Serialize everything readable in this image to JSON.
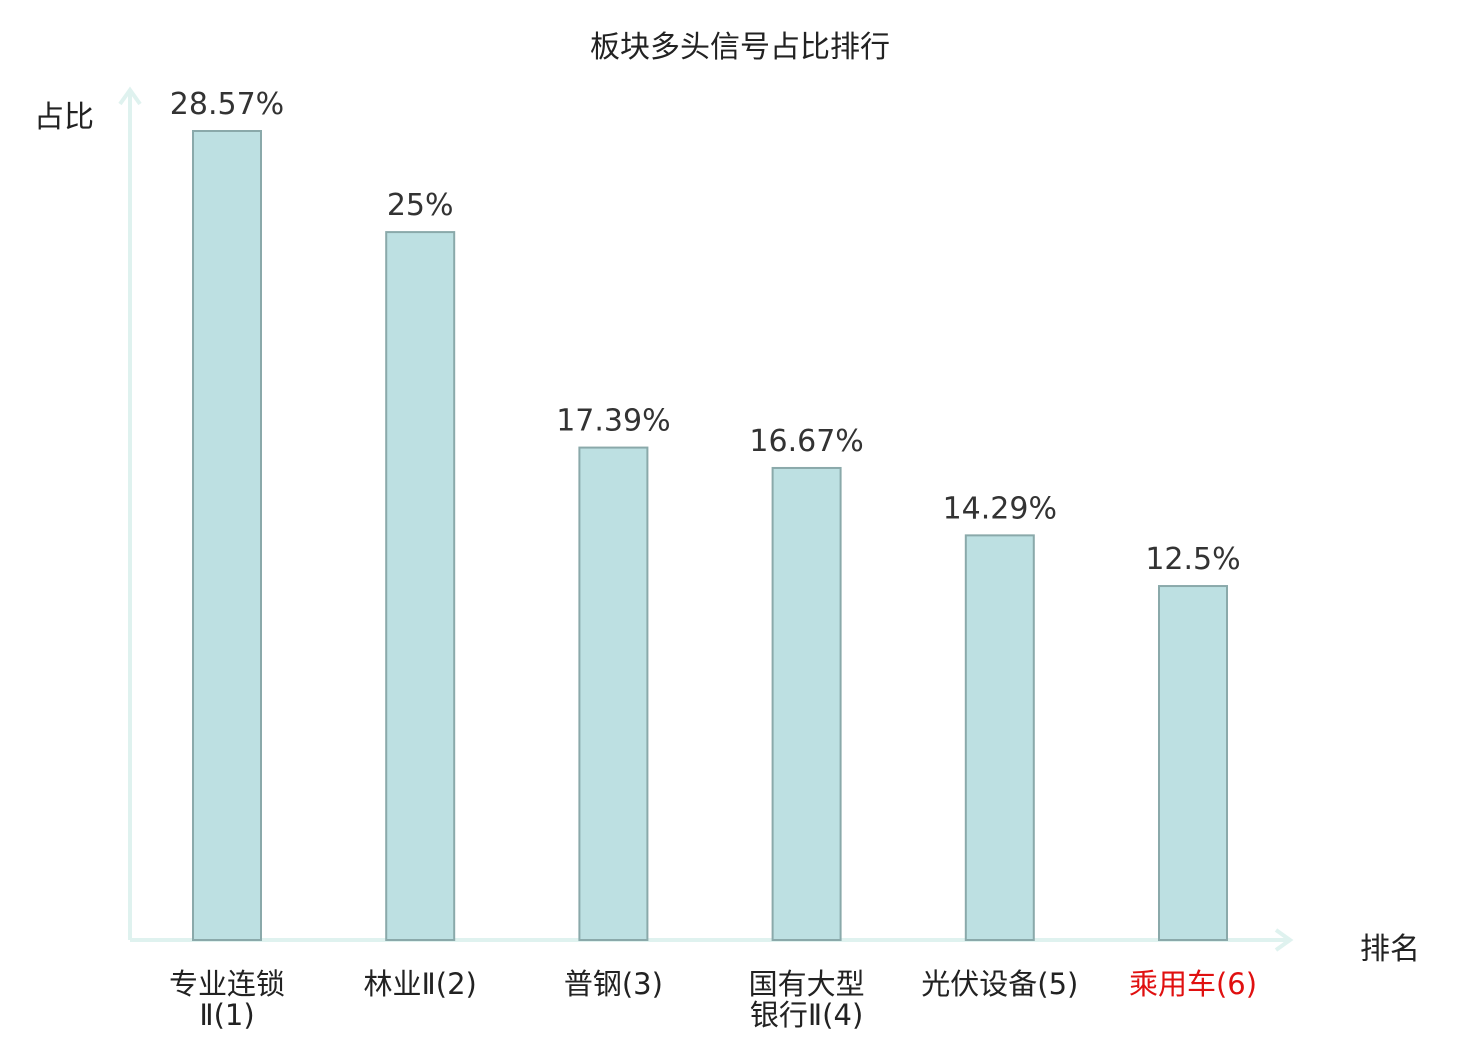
{
  "chart_data": {
    "type": "bar",
    "title": "板块多头信号占比排行",
    "xlabel": "排名",
    "ylabel": "占比",
    "unit": "%",
    "ylim": [
      0,
      28.57
    ],
    "grid": false,
    "legend": "none",
    "colors": {
      "bar_fill": "#bde0e2",
      "bar_stroke": "#8aa9aa",
      "axis": "#dff2ef",
      "value_label": "#333333",
      "category_label": "#222222",
      "highlight_label": "#e01010"
    },
    "categories": [
      {
        "lines": [
          "专业连锁",
          "Ⅱ(1)"
        ],
        "highlight": false
      },
      {
        "lines": [
          "林业Ⅱ(2)"
        ],
        "highlight": false
      },
      {
        "lines": [
          "普钢(3)"
        ],
        "highlight": false
      },
      {
        "lines": [
          "国有大型",
          "银行Ⅱ(4)"
        ],
        "highlight": false
      },
      {
        "lines": [
          "光伏设备(5)"
        ],
        "highlight": false
      },
      {
        "lines": [
          "乘用车(6)"
        ],
        "highlight": true
      }
    ],
    "values": [
      28.57,
      25,
      17.39,
      16.67,
      14.29,
      12.5
    ],
    "value_labels": [
      "28.57%",
      "25%",
      "17.39%",
      "16.67%",
      "14.29%",
      "12.5%"
    ]
  }
}
